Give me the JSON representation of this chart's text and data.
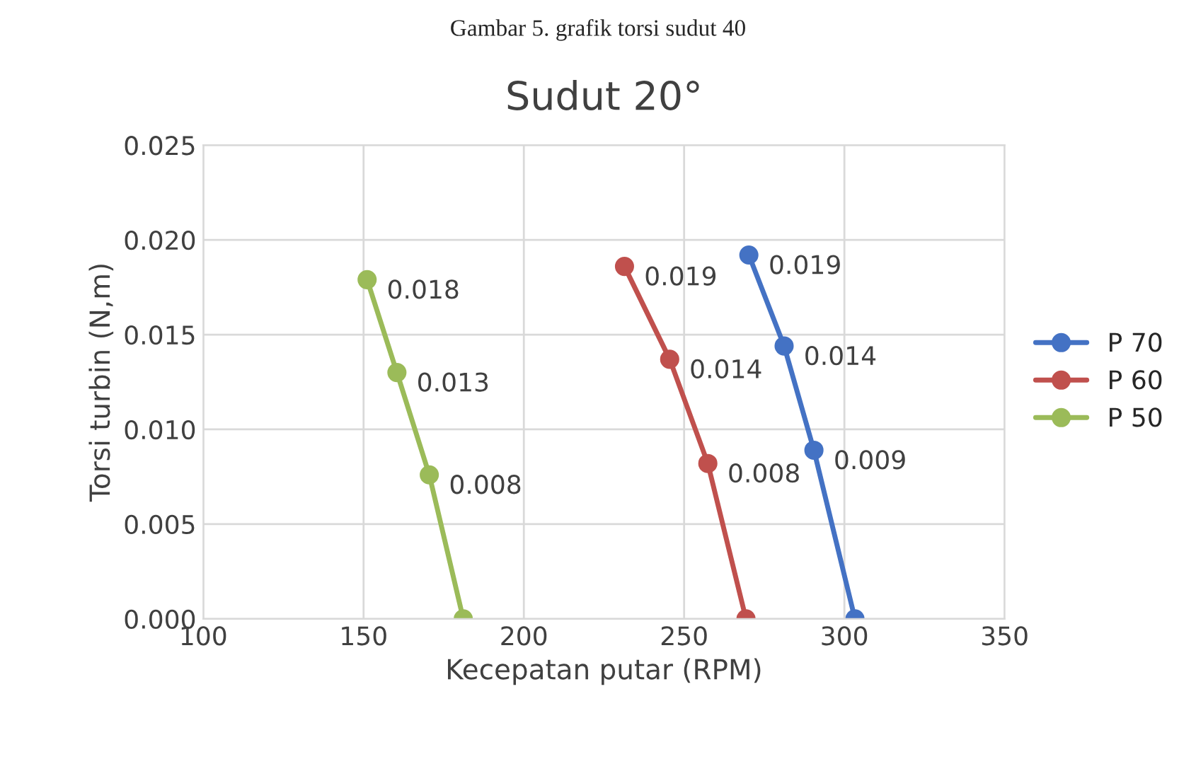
{
  "chart_data": {
    "type": "line",
    "title": "Sudut 20°",
    "xlabel": "Kecepatan putar (RPM)",
    "ylabel": "Torsi turbin (N,m)",
    "annotations": [
      "Gambar 5. grafik torsi sudut 40"
    ],
    "series": [
      {
        "name": "P 70",
        "color": "#4472c4",
        "x": [
          270.2,
          281.2,
          290.5,
          303.3
        ],
        "values": [
          0.0192,
          0.0144,
          0.0089,
          0.0
        ],
        "value_labels": [
          "0.019",
          "0.014",
          "0.009",
          null
        ]
      },
      {
        "name": "P 60",
        "color": "#c0504d",
        "x": [
          231.4,
          245.5,
          257.4,
          269.3
        ],
        "values": [
          0.0186,
          0.0137,
          0.0082,
          0.0
        ],
        "value_labels": [
          "0.019",
          "0.014",
          "0.008",
          null
        ]
      },
      {
        "name": "P 50",
        "color": "#9bbb59",
        "x": [
          151.1,
          160.4,
          170.5,
          181.1
        ],
        "values": [
          0.0179,
          0.013,
          0.0076,
          0.0
        ],
        "value_labels": [
          "0.018",
          "0.013",
          "0.008",
          null
        ]
      }
    ],
    "xlim": [
      100,
      350
    ],
    "xticks": [
      100,
      150,
      200,
      250,
      300,
      350
    ],
    "ylim": [
      0,
      0.025
    ],
    "yticks": [
      {
        "value": 0,
        "label": "0.000"
      },
      {
        "value": 0.005,
        "label": "0.005"
      },
      {
        "value": 0.01,
        "label": "0.010"
      },
      {
        "value": 0.015,
        "label": "0.015"
      },
      {
        "value": 0.02,
        "label": "0.020"
      },
      {
        "value": 0.025,
        "label": "0.025"
      }
    ],
    "grid": true,
    "legend": "right",
    "marker": "circle",
    "line_style": "solid"
  }
}
